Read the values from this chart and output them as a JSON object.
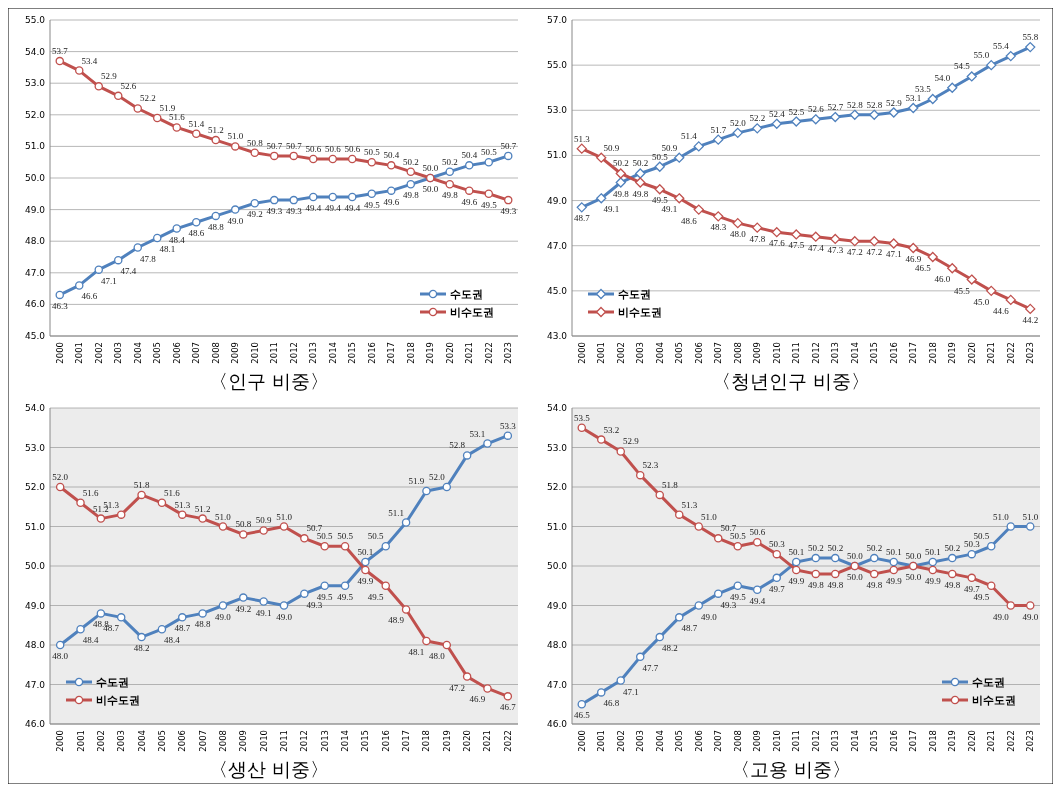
{
  "chart_data": [
    {
      "type": "line",
      "title": "〈인구 비중〉",
      "categories": [
        "2000",
        "2001",
        "2002",
        "2003",
        "2004",
        "2005",
        "2006",
        "2007",
        "2008",
        "2009",
        "2010",
        "2011",
        "2012",
        "2013",
        "2014",
        "2015",
        "2016",
        "2017",
        "2018",
        "2019",
        "2020",
        "2021",
        "2022",
        "2023"
      ],
      "series": [
        {
          "name": "수도권",
          "color": "#4f81bd",
          "values": [
            46.3,
            46.6,
            47.1,
            47.4,
            47.8,
            48.1,
            48.4,
            48.6,
            48.8,
            49.0,
            49.2,
            49.3,
            49.3,
            49.4,
            49.4,
            49.4,
            49.5,
            49.6,
            49.8,
            50.0,
            50.2,
            50.4,
            50.5,
            50.7
          ],
          "value_labels": [
            "46.3",
            "46.6",
            "47.1",
            "47.4",
            "47.8",
            "48.1",
            "48.4",
            "48.6",
            "48.8",
            "49.0",
            "49.2",
            "49.3",
            "49.3",
            "49.4",
            "49.4",
            "49.4",
            "49.5",
            "49.6",
            "49.8",
            "50.0",
            "50.2",
            "50.4",
            "50.5",
            "50.7"
          ]
        },
        {
          "name": "비수도권",
          "color": "#c0504d",
          "values": [
            53.7,
            53.4,
            52.9,
            52.6,
            52.2,
            51.9,
            51.6,
            51.4,
            51.2,
            51.0,
            50.8,
            50.7,
            50.7,
            50.6,
            50.6,
            50.6,
            50.5,
            50.4,
            50.2,
            50.0,
            49.8,
            49.6,
            49.5,
            49.3
          ],
          "value_labels": [
            "53.7",
            "53.4",
            "52.9",
            "52.6",
            "52.2",
            "51.9",
            "51.6",
            "51.4",
            "51.2",
            "51.0",
            "50.8",
            "50.7",
            "50.7",
            "50.6",
            "50.6",
            "50.6",
            "50.5",
            "50.4",
            "50.2",
            "50.0",
            "49.8",
            "49.6",
            "49.5",
            "49.3"
          ]
        }
      ],
      "ylim": [
        45,
        55
      ],
      "yticks": [
        {
          "value": 45,
          "label": "45.0"
        },
        {
          "value": 46,
          "label": "46.0"
        },
        {
          "value": 47,
          "label": "47.0"
        },
        {
          "value": 48,
          "label": "48.0"
        },
        {
          "value": 49,
          "label": "49.0"
        },
        {
          "value": 50,
          "label": "50.0"
        },
        {
          "value": 51,
          "label": "51.0"
        },
        {
          "value": 52,
          "label": "52.0"
        },
        {
          "value": 53,
          "label": "53.0"
        },
        {
          "value": 54,
          "label": "54.0"
        },
        {
          "value": 55,
          "label": "55.0"
        }
      ],
      "grid": "y",
      "legend": "bottom right",
      "marker": "circle"
    },
    {
      "type": "line",
      "title": "〈청년인구 비중〉",
      "categories": [
        "2000",
        "2001",
        "2002",
        "2003",
        "2004",
        "2005",
        "2006",
        "2007",
        "2008",
        "2009",
        "2010",
        "2011",
        "2012",
        "2013",
        "2014",
        "2015",
        "2016",
        "2017",
        "2018",
        "2019",
        "2020",
        "2021",
        "2022",
        "2023"
      ],
      "series": [
        {
          "name": "수도권",
          "color": "#4f81bd",
          "values": [
            48.7,
            49.1,
            49.8,
            50.2,
            50.5,
            50.9,
            51.4,
            51.7,
            52.0,
            52.2,
            52.4,
            52.5,
            52.6,
            52.7,
            52.8,
            52.8,
            52.9,
            53.1,
            53.5,
            54.0,
            54.5,
            55.0,
            55.4,
            55.8
          ],
          "value_labels": [
            "48.7",
            "49.1",
            "49.8",
            "50.2",
            "50.5",
            "50.9",
            "51.4",
            "51.7",
            "52.0",
            "52.2",
            "52.4",
            "52.5",
            "52.6",
            "52.7",
            "52.8",
            "52.8",
            "52.9",
            "53.1",
            "53.5",
            "54.0",
            "54.5",
            "55.0",
            "55.4",
            "55.8"
          ]
        },
        {
          "name": "비수도권",
          "color": "#c0504d",
          "values": [
            51.3,
            50.9,
            50.2,
            49.8,
            49.5,
            49.1,
            48.6,
            48.3,
            48.0,
            47.8,
            47.6,
            47.5,
            47.4,
            47.3,
            47.2,
            47.2,
            47.1,
            46.9,
            46.5,
            46.0,
            45.5,
            45.0,
            44.6,
            44.2
          ],
          "value_labels": [
            "51.3",
            "50.9",
            "50.2",
            "49.8",
            "49.5",
            "49.1",
            "48.6",
            "48.3",
            "48.0",
            "47.8",
            "47.6",
            "47.5",
            "47.4",
            "47.3",
            "47.2",
            "47.2",
            "47.1",
            "46.9",
            "46.5",
            "46.0",
            "45.5",
            "45.0",
            "44.6",
            "44.2"
          ]
        }
      ],
      "ylim": [
        43,
        57
      ],
      "yticks": [
        {
          "value": 43,
          "label": "43.0"
        },
        {
          "value": 45,
          "label": "45.0"
        },
        {
          "value": 47,
          "label": "47.0"
        },
        {
          "value": 49,
          "label": "49.0"
        },
        {
          "value": 51,
          "label": "51.0"
        },
        {
          "value": 53,
          "label": "53.0"
        },
        {
          "value": 55,
          "label": "55.0"
        },
        {
          "value": 57,
          "label": "57.0"
        }
      ],
      "grid": "y",
      "legend": "bottom left",
      "marker": "diamond"
    },
    {
      "type": "line",
      "title": "〈생산 비중〉",
      "categories": [
        "2000",
        "2001",
        "2002",
        "2003",
        "2004",
        "2005",
        "2006",
        "2007",
        "2008",
        "2009",
        "2010",
        "2011",
        "2012",
        "2013",
        "2014",
        "2015",
        "2016",
        "2017",
        "2018",
        "2019",
        "2020",
        "2021",
        "2022"
      ],
      "series": [
        {
          "name": "수도권",
          "color": "#4f81bd",
          "values": [
            48.0,
            48.4,
            48.8,
            48.7,
            48.2,
            48.4,
            48.7,
            48.8,
            49.0,
            49.2,
            49.1,
            49.0,
            49.3,
            49.5,
            49.5,
            50.1,
            50.5,
            51.1,
            51.9,
            52.0,
            52.8,
            53.1,
            53.3
          ],
          "value_labels": [
            "48.0",
            "48.4",
            "48.8",
            "48.7",
            "48.2",
            "48.4",
            "48.7",
            "48.8",
            "49.0",
            "49.2",
            "49.1",
            "49.0",
            "49.3",
            "49.5",
            "49.5",
            "50.1",
            "50.5",
            "51.1",
            "51.9",
            "52.0",
            "52.8",
            "53.1",
            "53.3"
          ]
        },
        {
          "name": "비수도권",
          "color": "#c0504d",
          "values": [
            52.0,
            51.6,
            51.2,
            51.3,
            51.8,
            51.6,
            51.3,
            51.2,
            51.0,
            50.8,
            50.9,
            51.0,
            50.7,
            50.5,
            50.5,
            49.9,
            49.5,
            48.9,
            48.1,
            48.0,
            47.2,
            46.9,
            46.7
          ],
          "value_labels": [
            "52.0",
            "51.6",
            "51.2",
            "51.3",
            "51.8",
            "51.6",
            "51.3",
            "51.2",
            "51.0",
            "50.8",
            "50.9",
            "51.0",
            "50.7",
            "50.5",
            "50.5",
            "49.9",
            "49.5",
            "48.9",
            "48.1",
            "48.0",
            "47.2",
            "46.9",
            "46.7"
          ]
        }
      ],
      "ylim": [
        46,
        54
      ],
      "yticks": [
        {
          "value": 46,
          "label": "46.0"
        },
        {
          "value": 47,
          "label": "47.0"
        },
        {
          "value": 48,
          "label": "48.0"
        },
        {
          "value": 49,
          "label": "49.0"
        },
        {
          "value": 50,
          "label": "50.0"
        },
        {
          "value": 51,
          "label": "51.0"
        },
        {
          "value": 52,
          "label": "52.0"
        },
        {
          "value": 53,
          "label": "53.0"
        },
        {
          "value": 54,
          "label": "54.0"
        }
      ],
      "grid": "y",
      "legend": "bottom left",
      "marker": "circle"
    },
    {
      "type": "line",
      "title": "〈고용 비중〉",
      "categories": [
        "2000",
        "2001",
        "2002",
        "2003",
        "2004",
        "2005",
        "2006",
        "2007",
        "2008",
        "2009",
        "2010",
        "2011",
        "2012",
        "2013",
        "2014",
        "2015",
        "2016",
        "2017",
        "2018",
        "2019",
        "2020",
        "2021",
        "2022",
        "2023"
      ],
      "series": [
        {
          "name": "수도권",
          "color": "#4f81bd",
          "values": [
            46.5,
            46.8,
            47.1,
            47.7,
            48.2,
            48.7,
            49.0,
            49.3,
            49.5,
            49.4,
            49.7,
            50.1,
            50.2,
            50.2,
            50.0,
            50.2,
            50.1,
            50.0,
            50.1,
            50.2,
            50.3,
            50.5,
            51.0,
            51.0
          ],
          "value_labels": [
            "46.5",
            "46.8",
            "47.1",
            "47.7",
            "48.2",
            "48.7",
            "49.0",
            "49.3",
            "49.5",
            "49.4",
            "49.7",
            "50.1",
            "50.2",
            "50.2",
            "50.0",
            "50.2",
            "50.1",
            "50.0",
            "50.1",
            "50.2",
            "50.3",
            "50.5",
            "51.0",
            "51.0"
          ]
        },
        {
          "name": "비수도권",
          "color": "#c0504d",
          "values": [
            53.5,
            53.2,
            52.9,
            52.3,
            51.8,
            51.3,
            51.0,
            50.7,
            50.5,
            50.6,
            50.3,
            49.9,
            49.8,
            49.8,
            50.0,
            49.8,
            49.9,
            50.0,
            49.9,
            49.8,
            49.7,
            49.5,
            49.0,
            49.0
          ],
          "value_labels": [
            "53.5",
            "53.2",
            "52.9",
            "52.3",
            "51.8",
            "51.3",
            "51.0",
            "50.7",
            "50.5",
            "50.6",
            "50.3",
            "49.9",
            "49.8",
            "49.8",
            "50.0",
            "49.8",
            "49.9",
            "50.0",
            "49.9",
            "49.8",
            "49.7",
            "49.5",
            "49.0",
            "49.0"
          ]
        }
      ],
      "ylim": [
        46,
        54
      ],
      "yticks": [
        {
          "value": 46,
          "label": "46.0"
        },
        {
          "value": 47,
          "label": "47.0"
        },
        {
          "value": 48,
          "label": "48.0"
        },
        {
          "value": 49,
          "label": "49.0"
        },
        {
          "value": 50,
          "label": "50.0"
        },
        {
          "value": 51,
          "label": "51.0"
        },
        {
          "value": 52,
          "label": "52.0"
        },
        {
          "value": 53,
          "label": "53.0"
        },
        {
          "value": 54,
          "label": "54.0"
        }
      ],
      "grid": "y",
      "legend": "bottom right",
      "marker": "circle"
    }
  ]
}
